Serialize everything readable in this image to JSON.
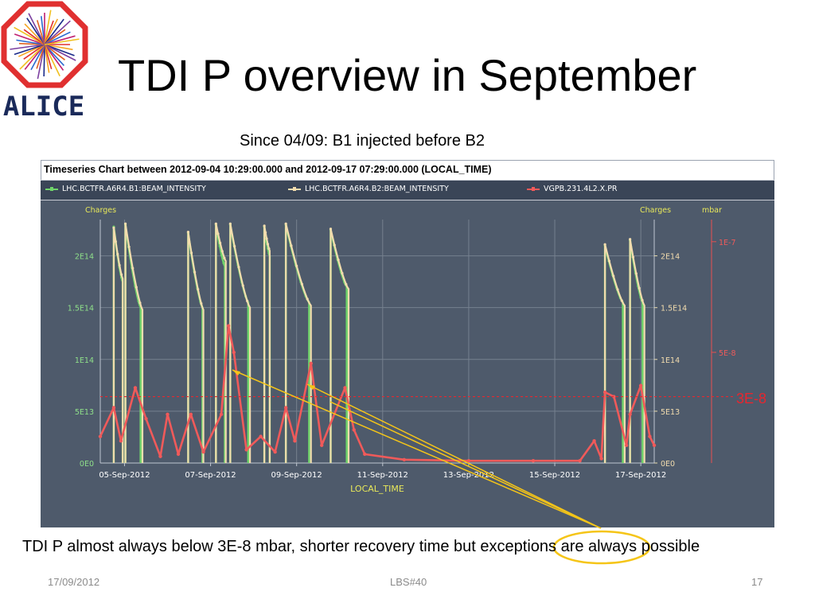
{
  "slide": {
    "title": "TDI P overview in September",
    "subtitle": "Since 04/09: B1 injected before B2",
    "caption": "TDI P almost always below 3E-8 mbar, shorter recovery time but exceptions are always possible",
    "footer_date": "17/09/2012",
    "footer_center": "LBS#40",
    "page_number": "17",
    "logo_text": "ALICE",
    "threshold_label": "3E-8",
    "colors": {
      "accent_red": "#e8262e",
      "arrow_yellow": "#f5c518",
      "panel_bg": "#4e5a6b"
    }
  },
  "chart_data": {
    "type": "line",
    "title": "Timeseries Chart between 2012-09-04 10:29:00.000 and 2012-09-17 07:29:00.000 (LOCAL_TIME)",
    "xlabel": "LOCAL_TIME",
    "x_ticks": [
      "05-Sep-2012",
      "07-Sep-2012",
      "09-Sep-2012",
      "11-Sep-2012",
      "13-Sep-2012",
      "15-Sep-2012",
      "17-Sep-2012"
    ],
    "x_range": [
      "2012-09-04 10:29",
      "2012-09-17 07:29"
    ],
    "y_left": {
      "label": "Charges",
      "ticks": [
        "0E0",
        "5E13",
        "1E14",
        "1.5E14",
        "2E14"
      ],
      "range": [
        0,
        235000000000000.0
      ]
    },
    "y_right1": {
      "label": "Charges",
      "ticks": [
        "0E0",
        "5E13",
        "1E14",
        "1.5E14",
        "2E14"
      ],
      "range": [
        0,
        235000000000000.0
      ]
    },
    "y_right2": {
      "label": "mbar",
      "ticks": [
        "1E-7",
        "5E-8"
      ],
      "range": [
        0,
        1.1e-07
      ]
    },
    "threshold": {
      "value": 3e-08,
      "unit": "mbar"
    },
    "grid": true,
    "series": [
      {
        "name": "LHC.BCTFR.A6R4.B1:BEAM_INTENSITY",
        "color": "#6fd36b",
        "axis": "left",
        "fills": [
          {
            "start": "2012-09-04 18:00",
            "end": "2012-09-04 23:00",
            "peak": 228000000000000.0,
            "final": 175000000000000.0
          },
          {
            "start": "2012-09-05 00:30",
            "end": "2012-09-05 09:00",
            "peak": 230000000000000.0,
            "final": 150000000000000.0
          },
          {
            "start": "2012-09-06 11:30",
            "end": "2012-09-06 19:30",
            "peak": 222000000000000.0,
            "final": 150000000000000.0
          },
          {
            "start": "2012-09-07 03:00",
            "end": "2012-09-07 08:00",
            "peak": 230000000000000.0,
            "final": 190000000000000.0
          },
          {
            "start": "2012-09-07 11:00",
            "end": "2012-09-07 21:00",
            "peak": 230000000000000.0,
            "final": 155000000000000.0
          },
          {
            "start": "2012-09-08 06:00",
            "end": "2012-09-08 09:00",
            "peak": 228000000000000.0,
            "final": 200000000000000.0
          },
          {
            "start": "2012-09-08 18:00",
            "end": "2012-09-09 07:00",
            "peak": 230000000000000.0,
            "final": 155000000000000.0
          },
          {
            "start": "2012-09-09 19:00",
            "end": "2012-09-10 04:00",
            "peak": 225000000000000.0,
            "final": 170000000000000.0
          },
          {
            "start": "2012-09-16 04:00",
            "end": "2012-09-16 14:00",
            "peak": 210000000000000.0,
            "final": 155000000000000.0
          },
          {
            "start": "2012-09-16 18:00",
            "end": "2012-09-17 01:00",
            "peak": 215000000000000.0,
            "final": 155000000000000.0
          }
        ]
      },
      {
        "name": "LHC.BCTFR.A6R4.B2:BEAM_INTENSITY",
        "color": "#f2dcae",
        "axis": "left",
        "fills": [
          {
            "start": "2012-09-04 18:00",
            "end": "2012-09-04 23:00",
            "peak": 227000000000000.0,
            "final": 178000000000000.0
          },
          {
            "start": "2012-09-05 00:30",
            "end": "2012-09-05 10:00",
            "peak": 231000000000000.0,
            "final": 148000000000000.0
          },
          {
            "start": "2012-09-06 11:30",
            "end": "2012-09-06 20:00",
            "peak": 223000000000000.0,
            "final": 148000000000000.0
          },
          {
            "start": "2012-09-07 03:00",
            "end": "2012-09-07 08:30",
            "peak": 231000000000000.0,
            "final": 195000000000000.0
          },
          {
            "start": "2012-09-07 11:00",
            "end": "2012-09-07 22:00",
            "peak": 231000000000000.0,
            "final": 150000000000000.0
          },
          {
            "start": "2012-09-08 06:00",
            "end": "2012-09-08 09:00",
            "peak": 229000000000000.0,
            "final": 205000000000000.0
          },
          {
            "start": "2012-09-08 18:00",
            "end": "2012-09-09 08:00",
            "peak": 231000000000000.0,
            "final": 152000000000000.0
          },
          {
            "start": "2012-09-09 19:00",
            "end": "2012-09-10 05:00",
            "peak": 226000000000000.0,
            "final": 168000000000000.0
          },
          {
            "start": "2012-09-16 04:00",
            "end": "2012-09-16 15:00",
            "peak": 211000000000000.0,
            "final": 152000000000000.0
          },
          {
            "start": "2012-09-16 18:00",
            "end": "2012-09-17 02:00",
            "peak": 216000000000000.0,
            "final": 152000000000000.0
          }
        ]
      },
      {
        "name": "VGPB.231.4L2.X.PR",
        "color": "#f05a5a",
        "axis": "right-mbar",
        "points": [
          [
            "2012-09-04 10:29",
            1.2e-08
          ],
          [
            "2012-09-04 18:00",
            2.5e-08
          ],
          [
            "2012-09-04 22:00",
            1e-08
          ],
          [
            "2012-09-05 06:00",
            3.4e-08
          ],
          [
            "2012-09-05 12:00",
            2e-08
          ],
          [
            "2012-09-05 20:00",
            3e-09
          ],
          [
            "2012-09-06 00:00",
            2.2e-08
          ],
          [
            "2012-09-06 06:00",
            4e-09
          ],
          [
            "2012-09-06 13:00",
            2.2e-08
          ],
          [
            "2012-09-06 20:00",
            5e-09
          ],
          [
            "2012-09-07 06:00",
            2.2e-08
          ],
          [
            "2012-09-07 10:00",
            6.2e-08
          ],
          [
            "2012-09-07 13:00",
            5e-08
          ],
          [
            "2012-09-07 20:00",
            6e-09
          ],
          [
            "2012-09-08 04:00",
            1.2e-08
          ],
          [
            "2012-09-08 12:00",
            5e-09
          ],
          [
            "2012-09-08 18:00",
            2.5e-08
          ],
          [
            "2012-09-08 23:00",
            1e-08
          ],
          [
            "2012-09-09 08:00",
            4.5e-08
          ],
          [
            "2012-09-09 14:00",
            8e-09
          ],
          [
            "2012-09-10 03:00",
            3.4e-08
          ],
          [
            "2012-09-10 08:00",
            1.5e-08
          ],
          [
            "2012-09-10 14:00",
            4e-09
          ],
          [
            "2012-09-11 12:00",
            1.5e-09
          ],
          [
            "2012-09-13 00:00",
            1e-09
          ],
          [
            "2012-09-14 12:00",
            1e-09
          ],
          [
            "2012-09-15 14:00",
            1e-09
          ],
          [
            "2012-09-15 22:00",
            1e-08
          ],
          [
            "2012-09-16 02:00",
            2e-09
          ],
          [
            "2012-09-16 04:00",
            3.2e-08
          ],
          [
            "2012-09-16 09:00",
            3e-08
          ],
          [
            "2012-09-16 16:00",
            8e-09
          ],
          [
            "2012-09-16 18:00",
            2.2e-08
          ],
          [
            "2012-09-17 00:00",
            3.5e-08
          ],
          [
            "2012-09-17 05:00",
            1.2e-08
          ],
          [
            "2012-09-17 07:29",
            8e-09
          ]
        ]
      }
    ],
    "annotations": [
      {
        "text": "exceptions",
        "type": "circled-callout"
      }
    ]
  }
}
